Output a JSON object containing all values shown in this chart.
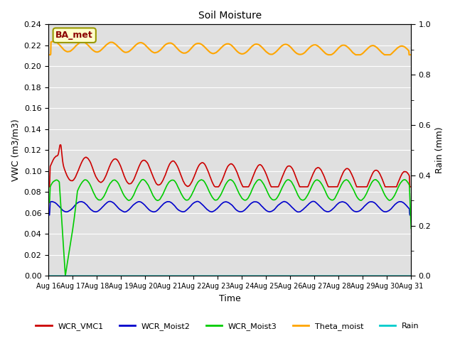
{
  "title": "Soil Moisture",
  "xlabel": "Time",
  "ylabel_left": "VWC (m3/m3)",
  "ylabel_right": "Rain (mm)",
  "ylim_left": [
    0.0,
    0.24
  ],
  "ylim_right": [
    0.0,
    1.0
  ],
  "background_color": "#e8e8e8",
  "legend_label": "BA_met",
  "legend_label_color": "#8b0000",
  "legend_label_bg": "#ffffcc",
  "legend_label_edge": "#999900",
  "wcr_vmc1_color": "#cc0000",
  "wcr_moist2_color": "#0000cc",
  "wcr_moist3_color": "#00cc00",
  "theta_moist_color": "#ffa500",
  "rain_color": "#00cccc",
  "xtick_labels": [
    "Aug 16",
    "Aug 17",
    "Aug 18",
    "Aug 19",
    "Aug 20",
    "Aug 21",
    "Aug 22",
    "Aug 23",
    "Aug 24",
    "Aug 25",
    "Aug 26",
    "Aug 27",
    "Aug 28",
    "Aug 29",
    "Aug 30",
    "Aug 31"
  ],
  "ytick_left": [
    0.0,
    0.02,
    0.04,
    0.06,
    0.08,
    0.1,
    0.12,
    0.14,
    0.16,
    0.18,
    0.2,
    0.22,
    0.24
  ],
  "ytick_right_labeled": [
    0.0,
    0.2,
    0.4,
    0.6,
    0.8,
    1.0
  ],
  "ytick_right_minor": [
    0.1,
    0.3,
    0.5,
    0.7,
    0.9
  ]
}
